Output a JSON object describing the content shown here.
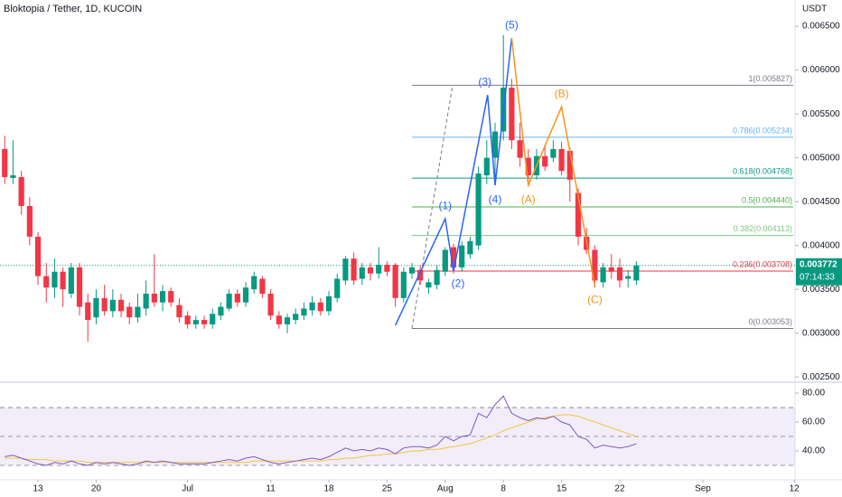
{
  "chart_data": {
    "type": "candlestick",
    "title": "Bloktopia / Tether, 1D, KUCOIN",
    "y_unit": "USDT",
    "up_color": "#089981",
    "down_color": "#f23645",
    "xlim": [
      -0.57,
      95.09
    ],
    "xticks": [
      {
        "value": 4,
        "label": "13"
      },
      {
        "value": 11,
        "label": "20"
      },
      {
        "value": 22,
        "label": "Jul"
      },
      {
        "value": 32,
        "label": "11"
      },
      {
        "value": 39,
        "label": "18"
      },
      {
        "value": 46,
        "label": "25"
      },
      {
        "value": 53,
        "label": "Aug"
      },
      {
        "value": 60,
        "label": "8"
      },
      {
        "value": 67,
        "label": "15"
      },
      {
        "value": 74,
        "label": "22"
      },
      {
        "value": 84,
        "label": "Sep"
      },
      {
        "value": 95,
        "label": "12"
      }
    ],
    "ylim": [
      0.00245,
      0.0068
    ],
    "yticks": [
      {
        "value": 0.0065,
        "label": "0.006500"
      },
      {
        "value": 0.006,
        "label": "0.006000"
      },
      {
        "value": 0.0055,
        "label": "0.005500"
      },
      {
        "value": 0.005,
        "label": "0.005000"
      },
      {
        "value": 0.0045,
        "label": "0.004500"
      },
      {
        "value": 0.004,
        "label": "0.004000"
      },
      {
        "value": 0.0035,
        "label": "0.003500"
      },
      {
        "value": 0.003,
        "label": "0.003000"
      },
      {
        "value": 0.0025,
        "label": "0.002500"
      }
    ],
    "candles": [
      [
        0.0051,
        0.00525,
        0.0047,
        0.00478
      ],
      [
        0.00477,
        0.0052,
        0.0047,
        0.0048
      ],
      [
        0.00478,
        0.00485,
        0.00435,
        0.00445
      ],
      [
        0.00445,
        0.00455,
        0.004,
        0.0041
      ],
      [
        0.0041,
        0.00415,
        0.00355,
        0.00365
      ],
      [
        0.00365,
        0.0038,
        0.00335,
        0.00352
      ],
      [
        0.00352,
        0.00385,
        0.0034,
        0.0037
      ],
      [
        0.0037,
        0.00375,
        0.0033,
        0.0035
      ],
      [
        0.00345,
        0.0038,
        0.0034,
        0.00375
      ],
      [
        0.00375,
        0.0038,
        0.0032,
        0.0033
      ],
      [
        0.00335,
        0.00345,
        0.0029,
        0.00315
      ],
      [
        0.00318,
        0.0035,
        0.0031,
        0.0034
      ],
      [
        0.0034,
        0.00355,
        0.0032,
        0.00325
      ],
      [
        0.00325,
        0.0035,
        0.00318,
        0.00338
      ],
      [
        0.00338,
        0.00345,
        0.00318,
        0.00325
      ],
      [
        0.0033,
        0.00335,
        0.0031,
        0.00318
      ],
      [
        0.00318,
        0.00345,
        0.00312,
        0.0033
      ],
      [
        0.00328,
        0.0036,
        0.0032,
        0.00345
      ],
      [
        0.00345,
        0.0039,
        0.0033,
        0.00335
      ],
      [
        0.00335,
        0.00355,
        0.00325,
        0.00348
      ],
      [
        0.00348,
        0.00352,
        0.0033,
        0.00335
      ],
      [
        0.00332,
        0.0034,
        0.00312,
        0.00318
      ],
      [
        0.0032,
        0.00325,
        0.00305,
        0.0031
      ],
      [
        0.0031,
        0.0032,
        0.00305,
        0.00315
      ],
      [
        0.00315,
        0.0032,
        0.00305,
        0.0031
      ],
      [
        0.0031,
        0.00328,
        0.00305,
        0.00322
      ],
      [
        0.0032,
        0.00335,
        0.00315,
        0.0033
      ],
      [
        0.00328,
        0.0035,
        0.00325,
        0.00345
      ],
      [
        0.00345,
        0.0035,
        0.0033,
        0.00335
      ],
      [
        0.00335,
        0.00358,
        0.0033,
        0.00352
      ],
      [
        0.0035,
        0.0037,
        0.00345,
        0.00365
      ],
      [
        0.00362,
        0.00365,
        0.0034,
        0.00345
      ],
      [
        0.00345,
        0.0035,
        0.00315,
        0.0032
      ],
      [
        0.0032,
        0.00325,
        0.00305,
        0.0031
      ],
      [
        0.0031,
        0.00322,
        0.003,
        0.00318
      ],
      [
        0.00315,
        0.00328,
        0.0031,
        0.00322
      ],
      [
        0.0032,
        0.00335,
        0.00315,
        0.00328
      ],
      [
        0.00326,
        0.00342,
        0.0032,
        0.00335
      ],
      [
        0.00335,
        0.0034,
        0.0032,
        0.00325
      ],
      [
        0.00325,
        0.00348,
        0.0032,
        0.00342
      ],
      [
        0.0034,
        0.00368,
        0.00335,
        0.00362
      ],
      [
        0.0036,
        0.00388,
        0.00355,
        0.00385
      ],
      [
        0.00385,
        0.00392,
        0.00355,
        0.0036
      ],
      [
        0.00362,
        0.0038,
        0.00355,
        0.00375
      ],
      [
        0.00375,
        0.0038,
        0.0036,
        0.00368
      ],
      [
        0.00368,
        0.00398,
        0.00362,
        0.00378
      ],
      [
        0.00378,
        0.00382,
        0.00365,
        0.0037
      ],
      [
        0.00378,
        0.0038,
        0.0033,
        0.0034
      ],
      [
        0.0034,
        0.00375,
        0.00335,
        0.0037
      ],
      [
        0.00368,
        0.0038,
        0.00362,
        0.00375
      ],
      [
        0.00372,
        0.00378,
        0.00355,
        0.0036
      ],
      [
        0.00352,
        0.00362,
        0.00345,
        0.00358
      ],
      [
        0.00355,
        0.00378,
        0.0035,
        0.00372
      ],
      [
        0.0037,
        0.00398,
        0.00365,
        0.00395
      ],
      [
        0.00398,
        0.00402,
        0.00368,
        0.00375
      ],
      [
        0.00375,
        0.00405,
        0.0037,
        0.004
      ],
      [
        0.0039,
        0.0041,
        0.00385,
        0.00405
      ],
      [
        0.004,
        0.0049,
        0.00395,
        0.00482
      ],
      [
        0.0048,
        0.0052,
        0.0047,
        0.005
      ],
      [
        0.005,
        0.0054,
        0.0047,
        0.0053
      ],
      [
        0.0053,
        0.0064,
        0.0052,
        0.0058
      ],
      [
        0.0058,
        0.0059,
        0.0051,
        0.0052
      ],
      [
        0.0052,
        0.0054,
        0.0049,
        0.005
      ],
      [
        0.005,
        0.0051,
        0.00468,
        0.0048
      ],
      [
        0.0048,
        0.0051,
        0.00475,
        0.00502
      ],
      [
        0.00502,
        0.00515,
        0.00485,
        0.0049
      ],
      [
        0.005,
        0.0052,
        0.00495,
        0.0051
      ],
      [
        0.0051,
        0.00518,
        0.0048,
        0.00485
      ],
      [
        0.00508,
        0.00512,
        0.0045,
        0.00475
      ],
      [
        0.0046,
        0.00465,
        0.004,
        0.0041
      ],
      [
        0.0041,
        0.0042,
        0.0039,
        0.00395
      ],
      [
        0.00395,
        0.004,
        0.00352,
        0.0036
      ],
      [
        0.00358,
        0.0038,
        0.00352,
        0.00375
      ],
      [
        0.00375,
        0.0039,
        0.00362,
        0.0037
      ],
      [
        0.00375,
        0.00385,
        0.00352,
        0.0036
      ],
      [
        0.00362,
        0.00372,
        0.00352,
        0.00365
      ],
      [
        0.0036,
        0.00382,
        0.00355,
        0.003772
      ]
    ],
    "current_price": {
      "value": 0.003772,
      "label": "0.003772"
    },
    "countdown": "07:14:33",
    "fib": {
      "start": 49,
      "color_line": "#787b86",
      "levels": [
        {
          "value": 0.005827,
          "label": "1(0.005827)",
          "color": "#787b86"
        },
        {
          "value": 0.005234,
          "label": "0.786(0.005234)",
          "color": "#64b5f6"
        },
        {
          "value": 0.004768,
          "label": "0.618(0.004768)",
          "color": "#089981"
        },
        {
          "value": 0.00444,
          "label": "0.5(0.004440)",
          "color": "#4caf50"
        },
        {
          "value": 0.004113,
          "label": "0.382(0.004113)",
          "color": "#81c784"
        },
        {
          "value": 0.003708,
          "label": "0.236(0.003708)",
          "color": "#f23645"
        },
        {
          "value": 0.003053,
          "label": "0(0.003053)",
          "color": "#787b86"
        }
      ]
    },
    "waves": [
      {
        "color": "#2962ff",
        "points": [
          {
            "x": 47,
            "y": 0.003088
          },
          {
            "x": 53,
            "y": 0.004304,
            "label": "(1)"
          },
          {
            "x": 54,
            "y": 0.003706,
            "label": "(2)"
          },
          {
            "x": 58.1,
            "y": 0.005716,
            "label": "(3)"
          },
          {
            "x": 59,
            "y": 0.004686,
            "label": "(4)"
          },
          {
            "x": 61,
            "y": 0.006366,
            "label": "(5)"
          }
        ]
      },
      {
        "color": "#f7931a",
        "points": [
          {
            "x": 61,
            "y": 0.006366
          },
          {
            "x": 63,
            "y": 0.004686,
            "label": "(A)"
          },
          {
            "x": 67,
            "y": 0.005582,
            "label": "(B)"
          },
          {
            "x": 71,
            "y": 0.003541,
            "label": "(C)"
          }
        ]
      }
    ],
    "rsi": {
      "ylim": [
        20.6,
        86.3
      ],
      "yticks": [
        {
          "value": 80,
          "label": "80.00"
        },
        {
          "value": 60,
          "label": "60.00"
        },
        {
          "value": 40,
          "label": "40.00"
        }
      ],
      "bands": [
        70,
        50,
        30
      ],
      "color": "#7e57c2",
      "ma_color": "#f5c342",
      "values": [
        36,
        37,
        35,
        33,
        31,
        30,
        32,
        31,
        33,
        31,
        30,
        32,
        31,
        32,
        31,
        30,
        31,
        33,
        32,
        33,
        32,
        31,
        31,
        31,
        31,
        32,
        33,
        34,
        33,
        35,
        36,
        34,
        32,
        31,
        32,
        33,
        34,
        35,
        34,
        36,
        39,
        42,
        40,
        41,
        40,
        42,
        41,
        38,
        42,
        43,
        43,
        42,
        44,
        50,
        47,
        50,
        51,
        66,
        63,
        72,
        78,
        66,
        63,
        61,
        63,
        62,
        64,
        60,
        58,
        50,
        48,
        42,
        44,
        43,
        42,
        43,
        45
      ],
      "ma": [
        35,
        35,
        35,
        34,
        34,
        34,
        33,
        33,
        33,
        33,
        32,
        32,
        32,
        32,
        32,
        32,
        32,
        32,
        32,
        32,
        32,
        32,
        32,
        32,
        32,
        32,
        32,
        32,
        32,
        32,
        33,
        33,
        33,
        33,
        33,
        33,
        33,
        33,
        33,
        34,
        34,
        35,
        35,
        36,
        37,
        37,
        38,
        38,
        39,
        40,
        40,
        41,
        41,
        42,
        43,
        44,
        45,
        47,
        49,
        51,
        54,
        56,
        58,
        60,
        62,
        63,
        64,
        65,
        65,
        64,
        62,
        60,
        58,
        56,
        54,
        52,
        50
      ]
    }
  }
}
